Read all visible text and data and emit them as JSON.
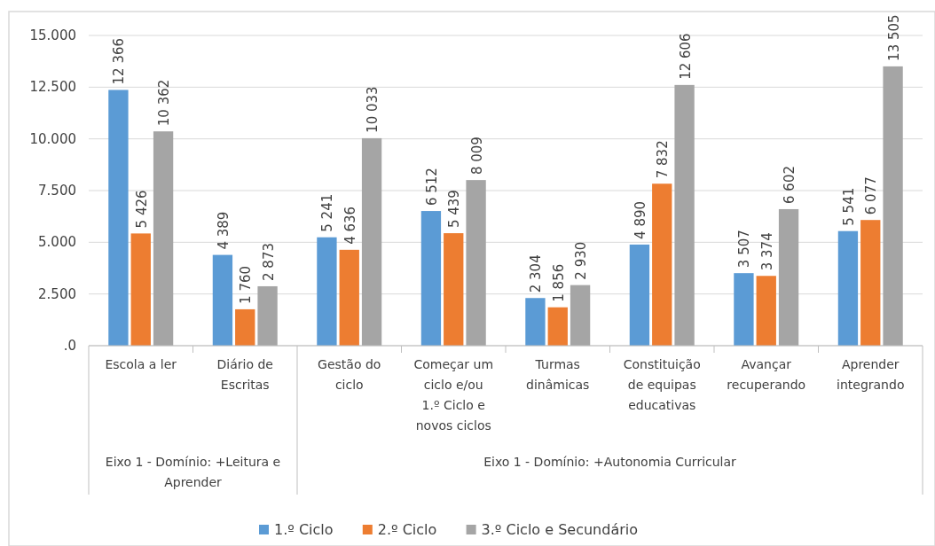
{
  "chart_data": {
    "type": "bar",
    "categories": [
      "Escola a ler",
      "Diário de Escritas",
      "Gestão do ciclo",
      "Começar um ciclo e/ou 1.º Ciclo e novos ciclos",
      "Turmas dinâmicas",
      "Constituição de equipas educativas",
      "Avançar recuperando",
      "Aprender integrando"
    ],
    "series": [
      {
        "name": "1.º Ciclo",
        "color": "#5b9bd5",
        "values": [
          12366,
          4389,
          5241,
          6512,
          2304,
          4890,
          3507,
          5541
        ],
        "value_labels": [
          "12 366",
          "4 389",
          "5 241",
          "6 512",
          "2 304",
          "4 890",
          "3 507",
          "5 541"
        ]
      },
      {
        "name": "2.º Ciclo",
        "color": "#ed7d31",
        "values": [
          5426,
          1760,
          4636,
          5439,
          1856,
          7832,
          3374,
          6077
        ],
        "value_labels": [
          "5 426",
          "1 760",
          "4 636",
          "5 439",
          "1 856",
          "7 832",
          "3 374",
          "6 077"
        ]
      },
      {
        "name": "3.º Ciclo e Secundário",
        "color": "#a5a5a5",
        "values": [
          10362,
          2873,
          10033,
          8009,
          2930,
          12606,
          6602,
          13505
        ],
        "value_labels": [
          "10 362",
          "2 873",
          "10 033",
          "8 009",
          "2 930",
          "12 606",
          "6 602",
          "13 505"
        ]
      }
    ],
    "annotations": [
      "Eixo 1 - Domínio: +Leitura e Aprender",
      "Eixo 1 - Domínio: +Autonomia Curricular"
    ],
    "ylim": [
      0,
      15000
    ],
    "yticks": [
      {
        "value": 0,
        "label": ".0"
      },
      {
        "value": 2500,
        "label": "2.500"
      },
      {
        "value": 5000,
        "label": "5.000"
      },
      {
        "value": 7500,
        "label": "7.500"
      },
      {
        "value": 10000,
        "label": "10.000"
      },
      {
        "value": 12500,
        "label": "12.500"
      },
      {
        "value": 15000,
        "label": "15.000"
      }
    ],
    "grid": "y",
    "legend": "bottom"
  }
}
